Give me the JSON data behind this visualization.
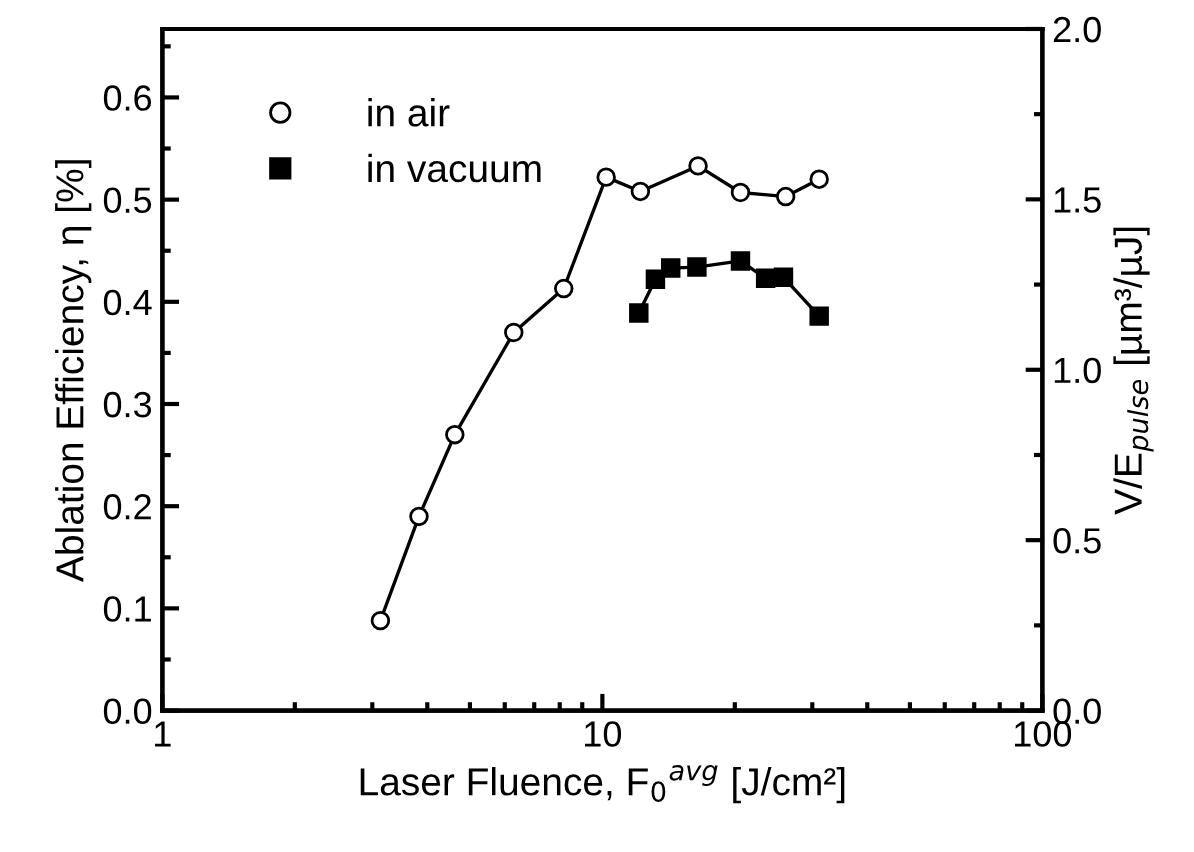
{
  "chart_data": {
    "type": "line",
    "xlabel": "Laser Fluence, F$_{0}$$^{avg}$ [J/cm²]",
    "ylabel": "Ablation Efficiency, η [%]",
    "y2label": "V/E$_{pulse}$ [µm³/µJ]",
    "log": "x",
    "xlim": [
      1,
      100
    ],
    "xticks": [
      1,
      10,
      100
    ],
    "ylim": [
      0,
      0.667
    ],
    "yticks": [
      {
        "value": 0,
        "label": "0.0"
      },
      0.1,
      0.2,
      0.3,
      0.4,
      0.5,
      0.6
    ],
    "y2lim": [
      0,
      2.0
    ],
    "y2ticks": [
      {
        "value": 0,
        "label": "0.0"
      },
      0.5,
      {
        "value": 1,
        "label": "1.0"
      },
      1.5,
      {
        "value": 2,
        "label": "2.0"
      }
    ],
    "legend": "top left",
    "grid": false,
    "line_style": "solid",
    "series": [
      {
        "name": "in air",
        "color": "#000000",
        "marker": "circle",
        "x": [
          3.13,
          3.83,
          4.62,
          6.29,
          8.17,
          10.2,
          12.2,
          16.5,
          20.6,
          26.1,
          31.1
        ],
        "values": [
          0.088,
          0.19,
          0.27,
          0.37,
          0.413,
          0.522,
          0.508,
          0.533,
          0.507,
          0.503,
          0.52
        ]
      },
      {
        "name": "in vacuum",
        "color": "#000000",
        "marker": "square",
        "x": [
          12.1,
          13.2,
          14.3,
          16.4,
          20.6,
          23.5,
          25.8,
          31.1
        ],
        "values": [
          0.389,
          0.422,
          0.433,
          0.434,
          0.44,
          0.423,
          0.424,
          0.386
        ]
      }
    ]
  }
}
